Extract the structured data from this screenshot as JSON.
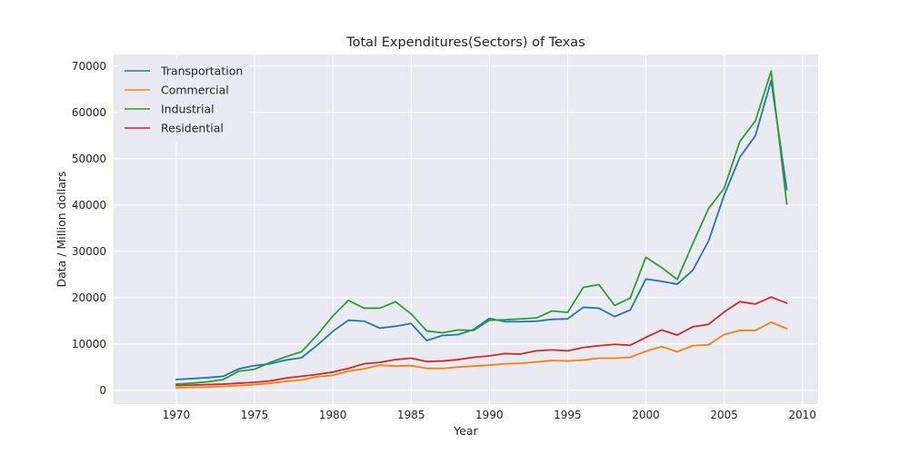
{
  "chart_data": {
    "type": "line",
    "title": "Total Expenditures(Sectors) of Texas",
    "xlabel": "Year",
    "ylabel": "Data / Million dollars",
    "xlim": [
      1966,
      2011
    ],
    "ylim": [
      -3000,
      72500
    ],
    "xticks": [
      "1970",
      "1975",
      "1980",
      "1985",
      "1990",
      "1995",
      "2000",
      "2005",
      "2010"
    ],
    "yticks": [
      "0",
      "10000",
      "20000",
      "30000",
      "40000",
      "50000",
      "60000",
      "70000"
    ],
    "grid": true,
    "legend_position": "top-left",
    "x": [
      1970,
      1971,
      1972,
      1973,
      1974,
      1975,
      1976,
      1977,
      1978,
      1979,
      1980,
      1981,
      1982,
      1983,
      1984,
      1985,
      1986,
      1987,
      1988,
      1989,
      1990,
      1991,
      1992,
      1993,
      1994,
      1995,
      1996,
      1997,
      1998,
      1999,
      2000,
      2001,
      2002,
      2003,
      2004,
      2005,
      2006,
      2007,
      2008,
      2009
    ],
    "series": [
      {
        "name": "Transportation",
        "color": "#1f77b4",
        "values": [
          2300,
          2500,
          2700,
          3000,
          4600,
          5300,
          5700,
          6500,
          7000,
          9700,
          12700,
          15100,
          14900,
          13400,
          13800,
          14400,
          10700,
          11800,
          12000,
          13100,
          15500,
          14800,
          14800,
          14900,
          15300,
          15400,
          17900,
          17700,
          15900,
          17300,
          24000,
          23500,
          22900,
          25900,
          32200,
          42100,
          50300,
          55000,
          66900,
          43300
        ]
      },
      {
        "name": "Commercial",
        "color": "#ff7f0e",
        "values": [
          500,
          600,
          700,
          800,
          1000,
          1200,
          1500,
          1900,
          2200,
          2900,
          3200,
          4100,
          4600,
          5400,
          5200,
          5300,
          4700,
          4700,
          5000,
          5200,
          5400,
          5700,
          5800,
          6100,
          6400,
          6300,
          6500,
          6900,
          6900,
          7100,
          8400,
          9400,
          8300,
          9600,
          9800,
          12000,
          12900,
          12900,
          14700,
          13300
        ]
      },
      {
        "name": "Industrial",
        "color": "#2ca02c",
        "values": [
          1300,
          1500,
          1800,
          2300,
          4100,
          4500,
          6000,
          7200,
          8300,
          11900,
          16000,
          19400,
          17700,
          17700,
          19100,
          16500,
          12800,
          12400,
          13000,
          12900,
          15100,
          15200,
          15400,
          15600,
          17100,
          16800,
          22200,
          22800,
          18300,
          19900,
          28700,
          26500,
          23900,
          31700,
          39200,
          43600,
          53700,
          58200,
          68900,
          40200
        ]
      },
      {
        "name": "Residential",
        "color": "#d62728",
        "values": [
          1000,
          1100,
          1200,
          1300,
          1500,
          1700,
          2000,
          2600,
          3000,
          3400,
          3900,
          4700,
          5700,
          6000,
          6600,
          6900,
          6200,
          6300,
          6600,
          7100,
          7400,
          7900,
          7800,
          8500,
          8700,
          8500,
          9200,
          9600,
          9900,
          9700,
          11400,
          13000,
          11900,
          13700,
          14200,
          16900,
          19100,
          18600,
          20100,
          18800
        ]
      }
    ]
  }
}
